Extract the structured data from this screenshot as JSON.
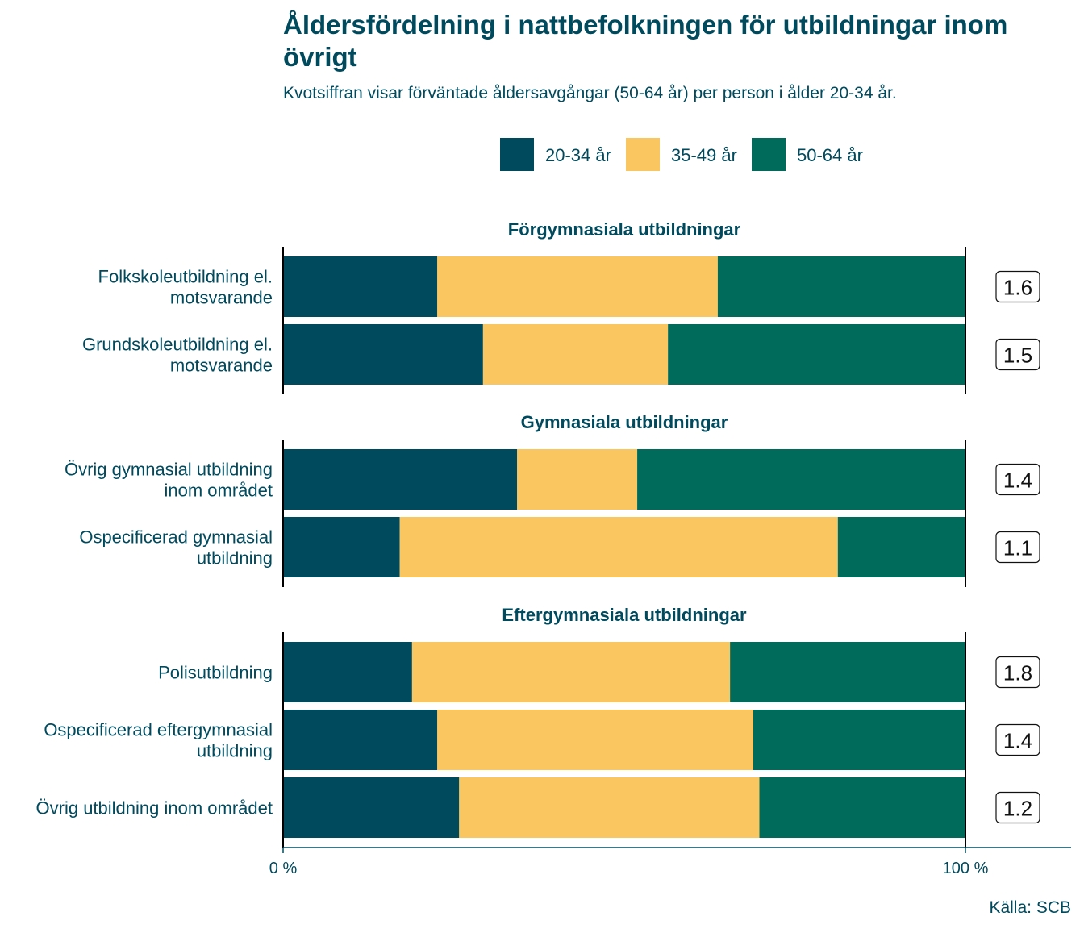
{
  "colors": {
    "text": "#004a5e",
    "age_20_34": "#004a5e",
    "age_35_49": "#f9c660",
    "age_50_64": "#006b5a",
    "axis": "#000000"
  },
  "chart_data": {
    "type": "bar",
    "orientation": "horizontal",
    "stacked": "percent",
    "title_lines": [
      "Åldersfördelning i nattbefolkningen för utbildningar inom",
      "övrigt"
    ],
    "subtitle": "Kvotsiffran visar förväntade åldersavgångar (50-64 år) per person i ålder 20-34 år.",
    "legend": {
      "position": "top",
      "items": [
        {
          "label": "20-34 år",
          "color": "#004a5e"
        },
        {
          "label": "35-49 år",
          "color": "#f9c660"
        },
        {
          "label": "50-64 år",
          "color": "#006b5a"
        }
      ]
    },
    "x_ticks": [
      "0 %",
      "100 %"
    ],
    "xlim": [
      0,
      100
    ],
    "grid": false,
    "source": "Källa: SCB",
    "panels": [
      {
        "title": "Förgymnasiala utbildningar",
        "rows": [
          {
            "label_lines": [
              "Folkskoleutbildning el.",
              "motsvarande"
            ],
            "values": [
              22.6,
              41.1,
              36.3
            ],
            "ratio": "1.6"
          },
          {
            "label_lines": [
              "Grundskoleutbildning el.",
              "motsvarande"
            ],
            "values": [
              29.3,
              27.1,
              43.6
            ],
            "ratio": "1.5"
          }
        ]
      },
      {
        "title": "Gymnasiala utbildningar",
        "rows": [
          {
            "label_lines": [
              "Övrig gymnasial utbildning",
              "inom området"
            ],
            "values": [
              34.3,
              17.6,
              48.1
            ],
            "ratio": "1.4"
          },
          {
            "label_lines": [
              "Ospecificerad gymnasial",
              "utbildning"
            ],
            "values": [
              17.1,
              64.2,
              18.7
            ],
            "ratio": "1.1"
          }
        ]
      },
      {
        "title": "Eftergymnasiala utbildningar",
        "rows": [
          {
            "label_lines": [
              "Polisutbildning"
            ],
            "values": [
              18.9,
              46.6,
              34.5
            ],
            "ratio": "1.8"
          },
          {
            "label_lines": [
              "Ospecificerad eftergymnasial",
              "utbildning"
            ],
            "values": [
              22.6,
              46.3,
              31.1
            ],
            "ratio": "1.4"
          },
          {
            "label_lines": [
              "Övrig utbildning inom området"
            ],
            "values": [
              25.8,
              44.0,
              30.2
            ],
            "ratio": "1.2"
          }
        ]
      }
    ]
  }
}
